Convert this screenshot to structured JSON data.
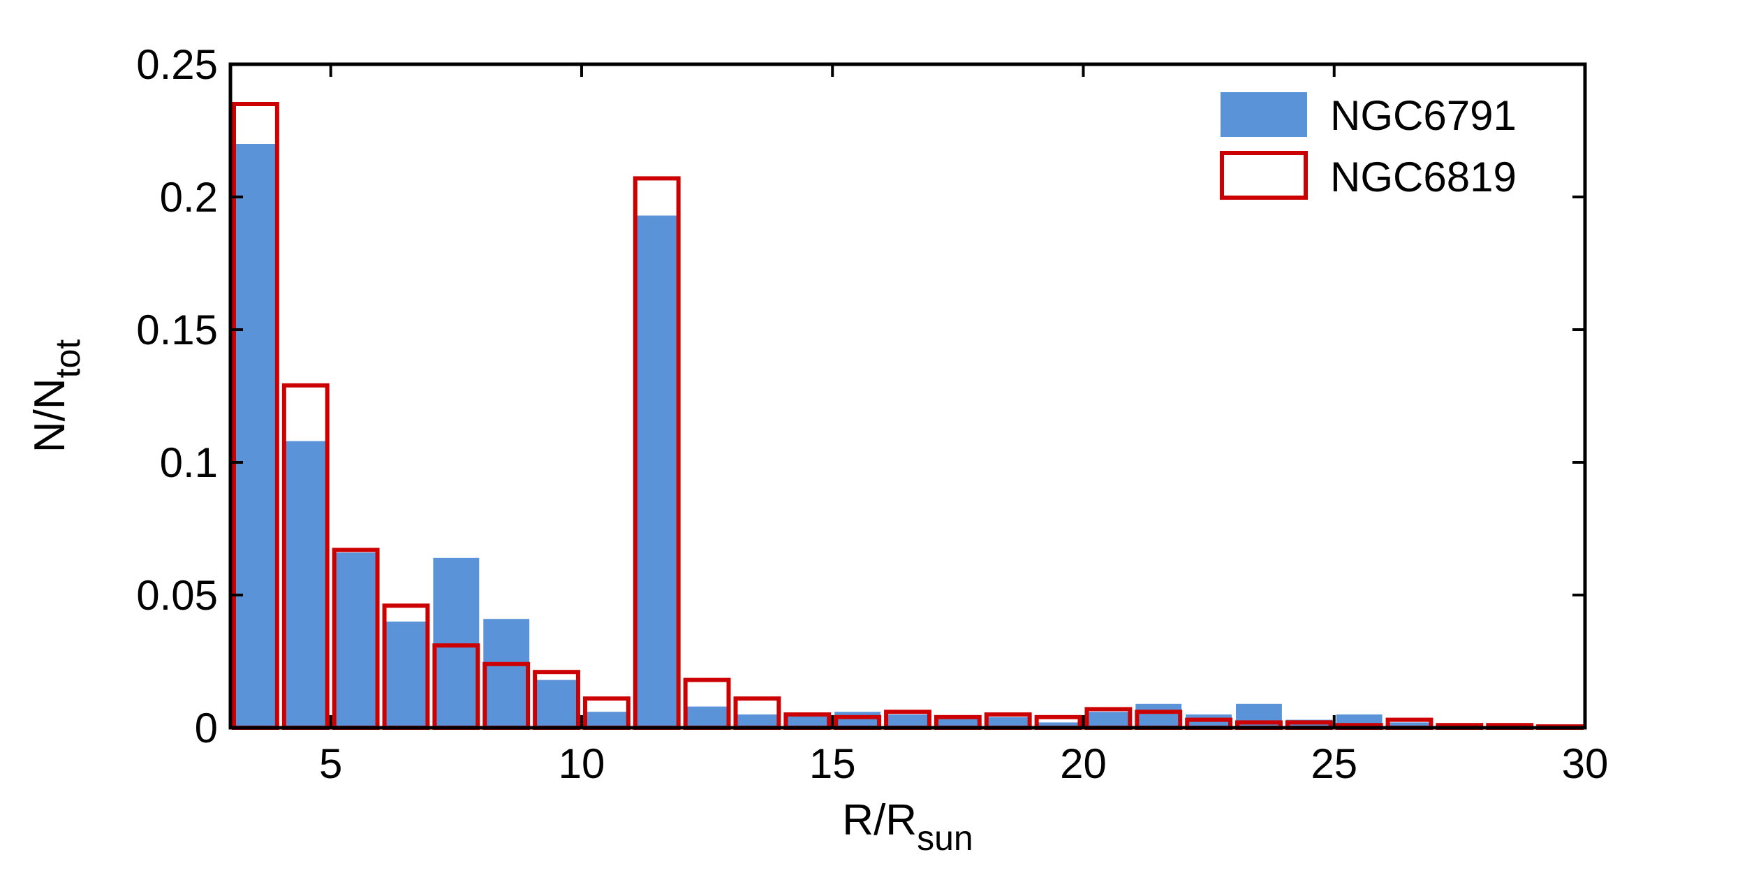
{
  "chart_data": {
    "type": "bar",
    "xlabel": "R/R",
    "xlabel_sub": "sun",
    "ylabel": "N/N",
    "ylabel_sub": "tot",
    "xlim": [
      3,
      30
    ],
    "ylim": [
      0,
      0.25
    ],
    "xticks": [
      5,
      10,
      15,
      20,
      25,
      30
    ],
    "yticks": [
      0,
      0.05,
      0.1,
      0.15,
      0.2,
      0.25
    ],
    "xtick_labels": [
      "5",
      "10",
      "15",
      "20",
      "25",
      "30"
    ],
    "ytick_labels": [
      "0",
      "0.05",
      "0.1",
      "0.15",
      "0.2",
      "0.25"
    ],
    "bin_width": 1,
    "bin_centers": [
      3.5,
      4.5,
      5.5,
      6.5,
      7.5,
      8.5,
      9.5,
      10.5,
      11.5,
      12.5,
      13.5,
      14.5,
      15.5,
      16.5,
      17.5,
      18.5,
      19.5,
      20.5,
      21.5,
      22.5,
      23.5,
      24.5,
      25.5,
      26.5,
      27.5,
      28.5,
      29.5
    ],
    "legend_position": "top-right",
    "grid": false,
    "series": [
      {
        "name": "NGC6791",
        "style": "filled",
        "color": "#5B93D9",
        "values": [
          0.22,
          0.108,
          0.066,
          0.04,
          0.064,
          0.041,
          0.018,
          0.006,
          0.193,
          0.008,
          0.005,
          0.005,
          0.006,
          0.005,
          0.004,
          0.004,
          0.002,
          0.006,
          0.009,
          0.005,
          0.009,
          0.003,
          0.005,
          0.002,
          0.001,
          0.001,
          0.001
        ]
      },
      {
        "name": "NGC6819",
        "style": "outline",
        "color": "#CC0000",
        "values": [
          0.235,
          0.129,
          0.067,
          0.046,
          0.031,
          0.024,
          0.021,
          0.011,
          0.207,
          0.018,
          0.011,
          0.005,
          0.004,
          0.006,
          0.004,
          0.005,
          0.004,
          0.007,
          0.006,
          0.003,
          0.002,
          0.002,
          0.001,
          0.003,
          0.001,
          0.001,
          0.0005
        ]
      }
    ]
  }
}
